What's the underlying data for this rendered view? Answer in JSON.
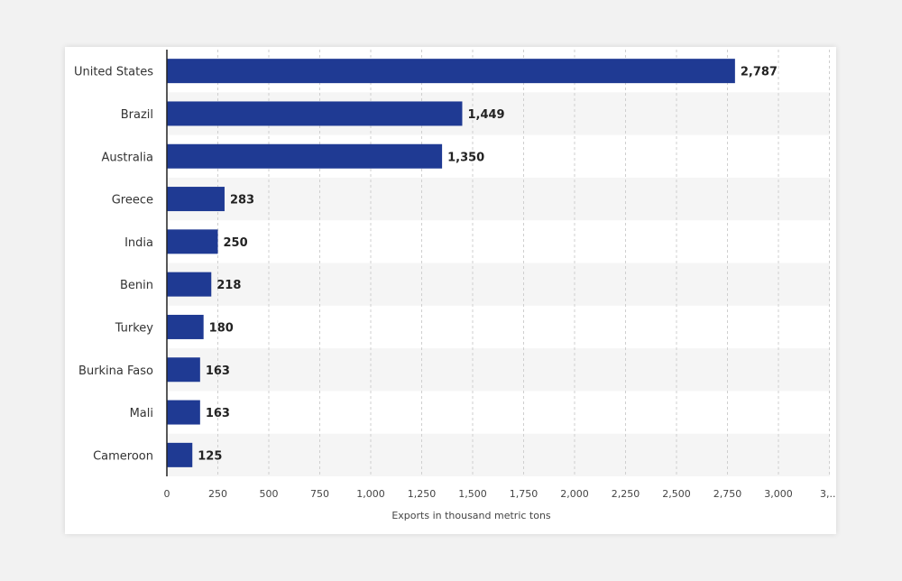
{
  "chart_data": {
    "type": "bar",
    "orientation": "horizontal",
    "categories": [
      "United States",
      "Brazil",
      "Australia",
      "Greece",
      "India",
      "Benin",
      "Turkey",
      "Burkina Faso",
      "Mali",
      "Cameroon"
    ],
    "values": [
      2787,
      1449,
      1350,
      283,
      250,
      218,
      180,
      163,
      163,
      125
    ],
    "value_labels": [
      "2,787",
      "1,449",
      "1,350",
      "283",
      "250",
      "218",
      "180",
      "163",
      "163",
      "125"
    ],
    "xticks": [
      "0",
      "250",
      "500",
      "750",
      "1,000",
      "1,250",
      "1,500",
      "1,750",
      "2,000",
      "2,250",
      "2,500",
      "2,750",
      "3,000",
      "3,..."
    ],
    "xlabel": "Exports in thousand metric tons",
    "xlim": [
      0,
      3250
    ],
    "grid": true,
    "bar_color": "#1f3a93"
  }
}
